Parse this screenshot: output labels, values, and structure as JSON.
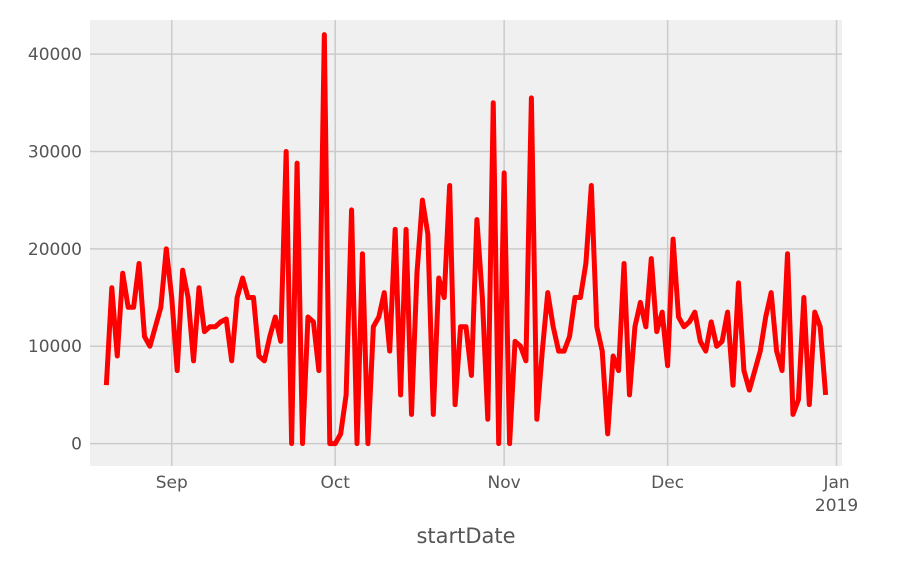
{
  "chart_data": {
    "type": "line",
    "xlabel": "startDate",
    "ylabel": "",
    "title": "",
    "grid": true,
    "xlim": [
      "2018-08-17",
      "2019-01-02"
    ],
    "ylim": [
      -2300,
      43500
    ],
    "yticks": [
      0,
      10000,
      20000,
      30000,
      40000
    ],
    "ytick_labels": [
      "0",
      "10000",
      "20000",
      "30000",
      "40000"
    ],
    "xticks": [
      {
        "date": "2018-09-01",
        "label": "Sep",
        "sublabel": ""
      },
      {
        "date": "2018-10-01",
        "label": "Oct",
        "sublabel": ""
      },
      {
        "date": "2018-11-01",
        "label": "Nov",
        "sublabel": ""
      },
      {
        "date": "2018-12-01",
        "label": "Dec",
        "sublabel": ""
      },
      {
        "date": "2019-01-01",
        "label": "Jan",
        "sublabel": "2019"
      }
    ],
    "series": [
      {
        "color": "#ff0000",
        "points": [
          [
            "2018-08-20",
            6000
          ],
          [
            "2018-08-21",
            16000
          ],
          [
            "2018-08-22",
            9000
          ],
          [
            "2018-08-23",
            17500
          ],
          [
            "2018-08-24",
            14000
          ],
          [
            "2018-08-25",
            14000
          ],
          [
            "2018-08-26",
            18500
          ],
          [
            "2018-08-27",
            11000
          ],
          [
            "2018-08-28",
            10000
          ],
          [
            "2018-08-29",
            12000
          ],
          [
            "2018-08-30",
            14000
          ],
          [
            "2018-08-31",
            20000
          ],
          [
            "2018-09-01",
            15000
          ],
          [
            "2018-09-02",
            7500
          ],
          [
            "2018-09-03",
            17800
          ],
          [
            "2018-09-04",
            15000
          ],
          [
            "2018-09-05",
            8500
          ],
          [
            "2018-09-06",
            16000
          ],
          [
            "2018-09-07",
            11500
          ],
          [
            "2018-09-08",
            12000
          ],
          [
            "2018-09-09",
            12000
          ],
          [
            "2018-09-10",
            12500
          ],
          [
            "2018-09-11",
            12800
          ],
          [
            "2018-09-12",
            8500
          ],
          [
            "2018-09-13",
            15000
          ],
          [
            "2018-09-14",
            17000
          ],
          [
            "2018-09-15",
            15000
          ],
          [
            "2018-09-16",
            15000
          ],
          [
            "2018-09-17",
            9000
          ],
          [
            "2018-09-18",
            8500
          ],
          [
            "2018-09-19",
            11000
          ],
          [
            "2018-09-20",
            13000
          ],
          [
            "2018-09-21",
            10500
          ],
          [
            "2018-09-22",
            30000
          ],
          [
            "2018-09-23",
            0
          ],
          [
            "2018-09-24",
            28800
          ],
          [
            "2018-09-25",
            0
          ],
          [
            "2018-09-26",
            13000
          ],
          [
            "2018-09-27",
            12500
          ],
          [
            "2018-09-28",
            7500
          ],
          [
            "2018-09-29",
            42000
          ],
          [
            "2018-09-30",
            0
          ],
          [
            "2018-10-01",
            0
          ],
          [
            "2018-10-02",
            1000
          ],
          [
            "2018-10-03",
            5000
          ],
          [
            "2018-10-04",
            24000
          ],
          [
            "2018-10-05",
            0
          ],
          [
            "2018-10-06",
            19500
          ],
          [
            "2018-10-07",
            0
          ],
          [
            "2018-10-08",
            12000
          ],
          [
            "2018-10-09",
            13000
          ],
          [
            "2018-10-10",
            15500
          ],
          [
            "2018-10-11",
            9500
          ],
          [
            "2018-10-12",
            22000
          ],
          [
            "2018-10-13",
            5000
          ],
          [
            "2018-10-14",
            22000
          ],
          [
            "2018-10-15",
            3000
          ],
          [
            "2018-10-16",
            17500
          ],
          [
            "2018-10-17",
            25000
          ],
          [
            "2018-10-18",
            21500
          ],
          [
            "2018-10-19",
            3000
          ],
          [
            "2018-10-20",
            17000
          ],
          [
            "2018-10-21",
            15000
          ],
          [
            "2018-10-22",
            26500
          ],
          [
            "2018-10-23",
            4000
          ],
          [
            "2018-10-24",
            12000
          ],
          [
            "2018-10-25",
            12000
          ],
          [
            "2018-10-26",
            7000
          ],
          [
            "2018-10-27",
            23000
          ],
          [
            "2018-10-28",
            15000
          ],
          [
            "2018-10-29",
            2500
          ],
          [
            "2018-10-30",
            35000
          ],
          [
            "2018-10-31",
            0
          ],
          [
            "2018-11-01",
            27800
          ],
          [
            "2018-11-02",
            0
          ],
          [
            "2018-11-03",
            10500
          ],
          [
            "2018-11-04",
            10000
          ],
          [
            "2018-11-05",
            8500
          ],
          [
            "2018-11-06",
            35500
          ],
          [
            "2018-11-07",
            2500
          ],
          [
            "2018-11-08",
            9500
          ],
          [
            "2018-11-09",
            15500
          ],
          [
            "2018-11-10",
            12000
          ],
          [
            "2018-11-11",
            9500
          ],
          [
            "2018-11-12",
            9500
          ],
          [
            "2018-11-13",
            11000
          ],
          [
            "2018-11-14",
            15000
          ],
          [
            "2018-11-15",
            15000
          ],
          [
            "2018-11-16",
            18500
          ],
          [
            "2018-11-17",
            26500
          ],
          [
            "2018-11-18",
            12000
          ],
          [
            "2018-11-19",
            9500
          ],
          [
            "2018-11-20",
            1000
          ],
          [
            "2018-11-21",
            9000
          ],
          [
            "2018-11-22",
            7500
          ],
          [
            "2018-11-23",
            18500
          ],
          [
            "2018-11-24",
            5000
          ],
          [
            "2018-11-25",
            12000
          ],
          [
            "2018-11-26",
            14500
          ],
          [
            "2018-11-27",
            12000
          ],
          [
            "2018-11-28",
            19000
          ],
          [
            "2018-11-29",
            11500
          ],
          [
            "2018-11-30",
            13500
          ],
          [
            "2018-12-01",
            8000
          ],
          [
            "2018-12-02",
            21000
          ],
          [
            "2018-12-03",
            13000
          ],
          [
            "2018-12-04",
            12000
          ],
          [
            "2018-12-05",
            12500
          ],
          [
            "2018-12-06",
            13500
          ],
          [
            "2018-12-07",
            10500
          ],
          [
            "2018-12-08",
            9500
          ],
          [
            "2018-12-09",
            12500
          ],
          [
            "2018-12-10",
            10000
          ],
          [
            "2018-12-11",
            10500
          ],
          [
            "2018-12-12",
            13500
          ],
          [
            "2018-12-13",
            6000
          ],
          [
            "2018-12-14",
            16500
          ],
          [
            "2018-12-15",
            7500
          ],
          [
            "2018-12-16",
            5500
          ],
          [
            "2018-12-17",
            7500
          ],
          [
            "2018-12-18",
            9500
          ],
          [
            "2018-12-19",
            13000
          ],
          [
            "2018-12-20",
            15500
          ],
          [
            "2018-12-21",
            9500
          ],
          [
            "2018-12-22",
            7500
          ],
          [
            "2018-12-23",
            19500
          ],
          [
            "2018-12-24",
            3000
          ],
          [
            "2018-12-25",
            4500
          ],
          [
            "2018-12-26",
            15000
          ],
          [
            "2018-12-27",
            4000
          ],
          [
            "2018-12-28",
            13500
          ],
          [
            "2018-12-29",
            12000
          ],
          [
            "2018-12-30",
            5000
          ]
        ]
      }
    ]
  }
}
